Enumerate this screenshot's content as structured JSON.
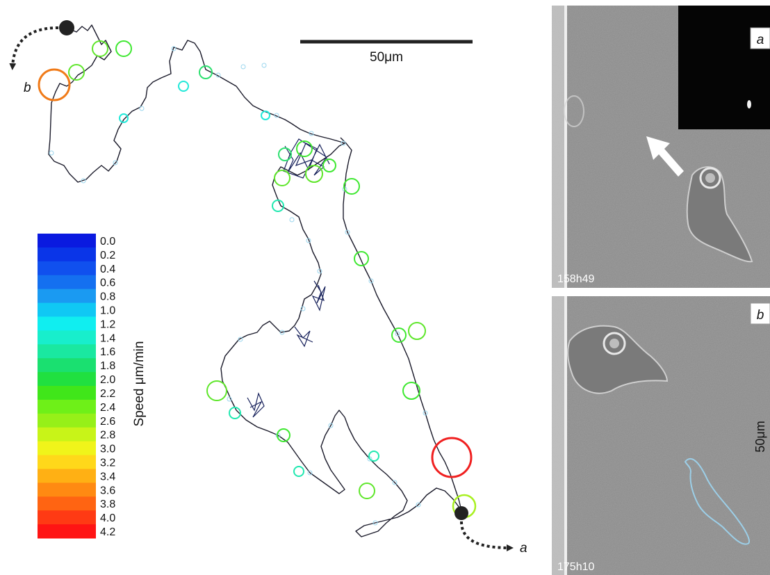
{
  "track": {
    "scale_bar_label": "50μm",
    "start_label": "b",
    "end_label": "a"
  },
  "legend": {
    "title": "Speed μm/min",
    "values": [
      "0.0",
      "0.2",
      "0.4",
      "0.6",
      "0.8",
      "1.0",
      "1.2",
      "1.4",
      "1.6",
      "1.8",
      "2.0",
      "2.2",
      "2.4",
      "2.6",
      "2.8",
      "3.0",
      "3.2",
      "3.4",
      "3.6",
      "3.8",
      "4.0",
      "4.2"
    ],
    "colors": [
      "#0a1ae0",
      "#0a35e8",
      "#1050ee",
      "#1470f0",
      "#1a9af2",
      "#10c8f4",
      "#10eef0",
      "#18eecc",
      "#1ae8a0",
      "#1ae070",
      "#20e040",
      "#40e61a",
      "#6ef018",
      "#96f018",
      "#c8f418",
      "#f0f41a",
      "#ffd81a",
      "#ffb014",
      "#ff8a12",
      "#ff6412",
      "#ff3a14",
      "#ff1414"
    ]
  },
  "panels": [
    {
      "tag": "a",
      "time": "158h49"
    },
    {
      "tag": "b",
      "time": "175h10",
      "scale_label": "50μm"
    }
  ]
}
